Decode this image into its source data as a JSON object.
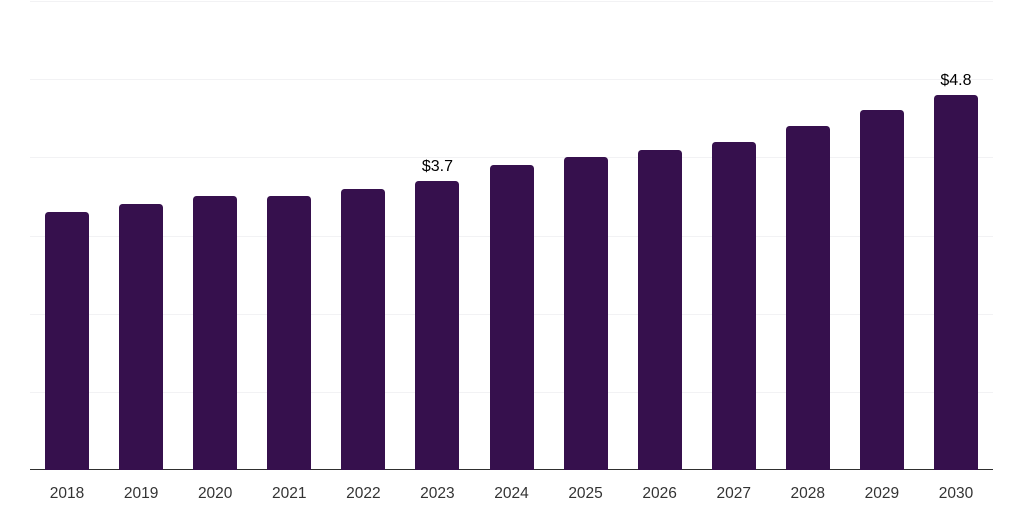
{
  "chart_data": {
    "type": "bar",
    "title": "",
    "xlabel": "",
    "ylabel": "",
    "categories": [
      "2018",
      "2019",
      "2020",
      "2021",
      "2022",
      "2023",
      "2024",
      "2025",
      "2026",
      "2027",
      "2028",
      "2029",
      "2030"
    ],
    "values": [
      3.3,
      3.4,
      3.5,
      3.5,
      3.6,
      3.7,
      3.9,
      4.0,
      4.1,
      4.2,
      4.4,
      4.6,
      4.8
    ],
    "labels": {
      "2023": "$3.7",
      "2030": "$4.8"
    },
    "ylim": [
      0,
      6
    ],
    "gridline_step": 1,
    "grid": true,
    "legend": false,
    "y_tick_labels_visible": false,
    "colors": {
      "bar": "#36104d",
      "grid": "#f2f2f4",
      "axis": "#2f2f2f",
      "tick_label": "#333333",
      "value_label": "#000000",
      "background": "#ffffff"
    }
  }
}
